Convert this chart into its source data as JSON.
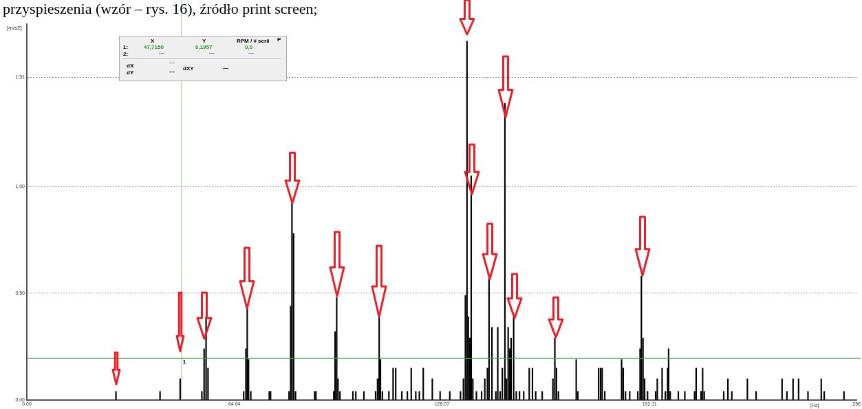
{
  "chart_data": {
    "type": "bar",
    "title": "przyspieszenia (wzór – rys. 16), źródło print screen;",
    "ylabel": "[m/s2]",
    "xlabel": "[Hz]",
    "x": [
      27.5,
      41.1,
      47.3,
      54.0,
      54.7,
      55.3,
      55.9,
      66.9,
      67.6,
      68.0,
      68.4,
      69.1,
      74.8,
      75.2,
      80.9,
      81.4,
      81.8,
      82.3,
      82.9,
      88.8,
      89.2,
      94.7,
      95.1,
      95.6,
      96.0,
      96.6,
      100.6,
      101.5,
      104.0,
      107.6,
      108.2,
      108.7,
      109.1,
      109.7,
      111.7,
      113.0,
      113.8,
      115.7,
      117.4,
      118.6,
      120.0,
      121.1,
      122.3,
      125.1,
      127.5,
      130.5,
      133.8,
      134.7,
      135.3,
      135.8,
      136.2,
      136.7,
      137.1,
      137.6,
      138.7,
      140.3,
      141.3,
      142.1,
      142.6,
      143.5,
      144.7,
      145.3,
      146.0,
      146.7,
      147.5,
      148.0,
      148.5,
      149.0,
      149.4,
      150.2,
      151.0,
      152.0,
      153.3,
      155.0,
      156.0,
      157.0,
      159.0,
      162.3,
      162.9,
      163.4,
      164.0,
      169.5,
      170.0,
      176.4,
      177.0,
      177.5,
      178.3,
      183.5,
      184.0,
      184.7,
      186.0,
      188.5,
      189.2,
      189.6,
      190.1,
      190.6,
      191.5,
      194.0,
      194.5,
      196.0,
      197.0,
      197.7,
      198.0,
      198.5,
      201.0,
      203.0,
      206.0,
      206.5,
      208.0,
      208.5,
      209.0,
      215.0,
      216.3,
      217.5,
      222.3,
      225.0,
      233.0,
      234.5,
      236.4,
      238.1,
      241.0,
      245.1,
      246.0,
      252.1
    ],
    "values": [
      0.04,
      0.04,
      0.1,
      0.04,
      0.24,
      0.39,
      0.15,
      0.04,
      0.24,
      0.43,
      0.19,
      0.04,
      0.04,
      0.04,
      0.04,
      0.44,
      0.92,
      0.78,
      0.04,
      0.04,
      0.04,
      0.04,
      0.32,
      0.48,
      0.1,
      0.04,
      0.04,
      0.04,
      0.04,
      0.04,
      0.1,
      0.39,
      0.19,
      0.04,
      0.04,
      0.15,
      0.15,
      0.04,
      0.04,
      0.15,
      0.04,
      0.04,
      0.15,
      0.1,
      0.04,
      0.04,
      0.04,
      0.1,
      0.49,
      1.68,
      0.39,
      0.29,
      1.05,
      0.1,
      0.04,
      0.04,
      0.1,
      0.15,
      0.57,
      0.34,
      0.04,
      0.34,
      0.04,
      0.15,
      1.39,
      0.1,
      0.34,
      0.24,
      0.29,
      0.39,
      0.04,
      0.04,
      0.04,
      0.15,
      0.15,
      0.04,
      0.04,
      0.1,
      0.29,
      0.15,
      0.04,
      0.19,
      0.04,
      0.15,
      0.15,
      0.15,
      0.04,
      0.19,
      0.15,
      0.04,
      0.04,
      0.04,
      0.24,
      0.58,
      0.29,
      0.1,
      0.04,
      0.04,
      0.1,
      0.15,
      0.04,
      0.15,
      0.24,
      0.04,
      0.04,
      0.04,
      0.04,
      0.15,
      0.04,
      0.15,
      0.04,
      0.04,
      0.1,
      0.04,
      0.1,
      0.04,
      0.1,
      0.04,
      0.1,
      0.1,
      0.04,
      0.1,
      0.04,
      0.04
    ],
    "color": "#000000",
    "xlim": [
      0,
      256
    ],
    "xticks": [
      {
        "value": 0,
        "label": "0.00"
      },
      64.04,
      128.07,
      192.11,
      {
        "value": 256,
        "label": "256"
      }
    ],
    "ylim": [
      0,
      1.76
    ],
    "yticks": [
      {
        "value": 0,
        "label": "0,00"
      },
      {
        "value": 0.5,
        "label": "0,50"
      },
      {
        "value": 1,
        "label": "1,00"
      },
      {
        "value": 1.51,
        "label": "1,51"
      }
    ],
    "grid": "y",
    "legend": false,
    "ref_lines": [
      {
        "axis": "x",
        "value": 47.715,
        "color": "#90d090"
      },
      {
        "axis": "y",
        "value": 0.1957,
        "color": "#3aaa3a"
      }
    ],
    "annotations": [
      "X",
      "Y",
      "RPM / # serii",
      "P",
      "1:",
      "47,7150",
      "0,1957",
      "0,0",
      "2:",
      "---",
      "---",
      "---",
      "dX",
      "—",
      "dY",
      "—",
      "dXY",
      "—",
      {
        "text": "1",
        "x": 47.715,
        "y": 0.1957
      }
    ]
  }
}
